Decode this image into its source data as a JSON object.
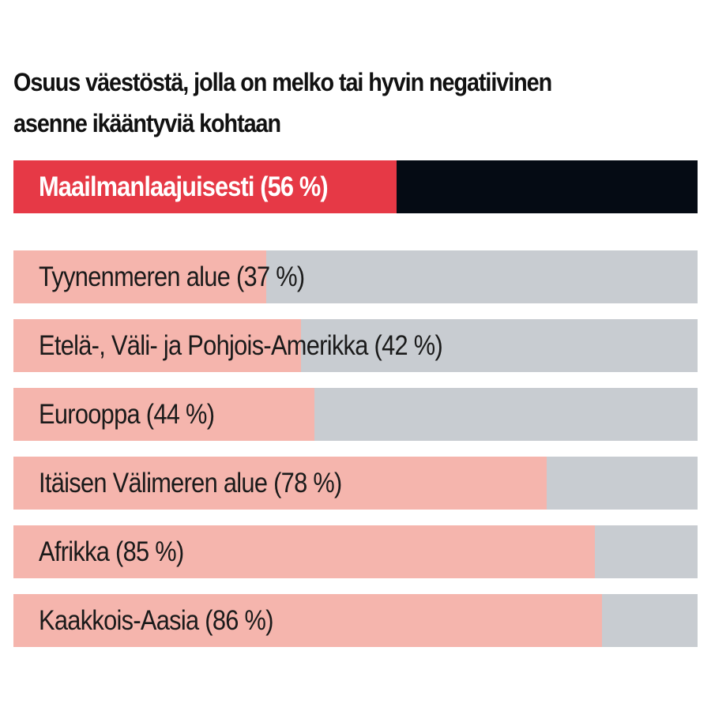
{
  "chart_data": {
    "type": "bar",
    "orientation": "horizontal",
    "title": "Osuus väestöstä, jolla on melko tai hyvin negatiivinen asenne ikääntyviä kohtaan",
    "unit": "%",
    "xlim": [
      0,
      100
    ],
    "grid": false,
    "categories": [
      "Maailmanlaajuisesti",
      "Tyynenmeren alue",
      "Etelä-, Väli- ja Pohjois-Amerikka",
      "Eurooppa",
      "Itäisen Välimeren alue",
      "Afrikka",
      "Kaakkois-Aasia"
    ],
    "values": [
      56,
      37,
      42,
      44,
      78,
      85,
      86
    ],
    "labels": [
      "Maailmanlaajuisesti (56 %)",
      "Tyynenmeren alue (37 %)",
      "Etelä-, Väli- ja Pohjois-Amerikka (42 %)",
      "Eurooppa (44 %)",
      "Itäisen Välimeren alue (78 %)",
      "Afrikka (85 %)",
      "Kaakkois-Aasia (86 %)"
    ],
    "colors": {
      "global_fill": "#e63946",
      "global_track": "#050b14",
      "region_fill": "#f5b5ad",
      "region_track": "#c8ccd1",
      "global_text": "#ffffff",
      "region_text": "#1a1a1a"
    }
  }
}
